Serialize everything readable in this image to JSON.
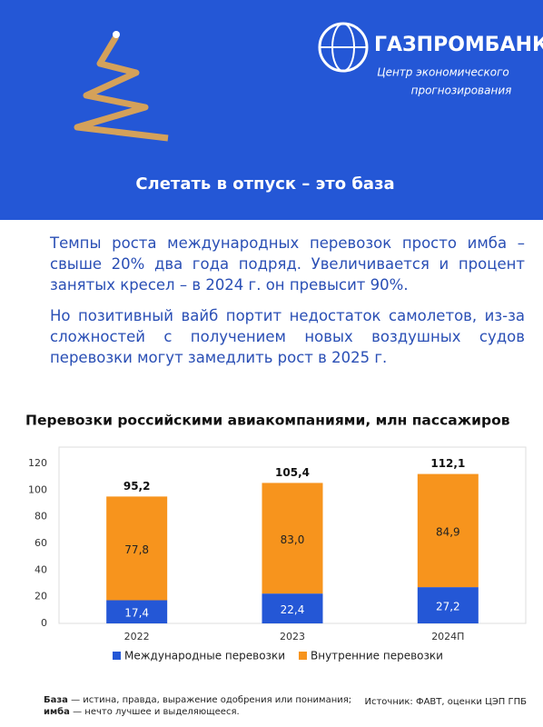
{
  "header": {
    "logo_name": "ГАЗПРОМБАНК",
    "logo_subtitle": [
      "Центр экономического",
      "прогнозирования"
    ],
    "title": "Слетать в отпуск – это база"
  },
  "paragraphs": [
    "Темпы роста международных перевозок просто имба – свыше 20% два года подряд. Увеличивается и процент занятых кресел – в 2024 г. он превысит 90%.",
    "Но позитивный вайб портит недостаток самолетов, из-за сложностей с получением новых воздушных судов перевозки могут замедлить рост в 2025 г."
  ],
  "chart_data": {
    "type": "stacked_bar",
    "title": "Перевозки российскими авиакомпаниями, млн пассажиров",
    "categories": [
      "2022",
      "2023",
      "2024П"
    ],
    "series": [
      {
        "name": "Международные перевозки",
        "color": "#2457d6",
        "values": [
          17.4,
          22.4,
          27.2
        ],
        "value_labels": [
          "17,4",
          "22,4",
          "27,2"
        ]
      },
      {
        "name": "Внутренние перевозки",
        "color": "#f7941d",
        "values": [
          77.8,
          83.0,
          84.9
        ],
        "value_labels": [
          "77,8",
          "83,0",
          "84,9"
        ]
      }
    ],
    "totals": [
      95.2,
      105.4,
      112.1
    ],
    "total_labels": [
      "95,2",
      "105,4",
      "112,1"
    ],
    "ylim": [
      0,
      120
    ],
    "yticks": [
      0,
      20,
      40,
      60,
      80,
      100,
      120
    ],
    "grid": false,
    "legend": "bottom"
  },
  "footnotes": [
    {
      "term": "База",
      "definition": "— истина, правда, выражение одобрения или понимания;"
    },
    {
      "term": "имба",
      "definition": "— нечто лучшее и выделяющееся."
    }
  ],
  "source": "Источник: ФАВТ, оценки ЦЭП ГПБ"
}
